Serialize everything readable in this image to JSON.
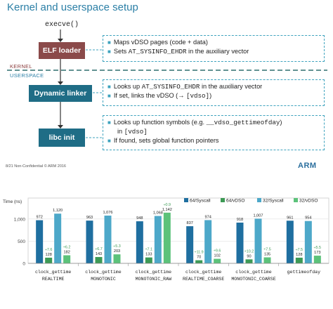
{
  "slide": {
    "title": "Kernel and userspace setup",
    "execve": "execve()",
    "kernel_label": "KERNEL",
    "userspace_label": "USERSPACE",
    "boxes": [
      {
        "label": "ELF loader",
        "color": "#8b4a4a"
      },
      {
        "label": "Dynamic linker",
        "color": "#1f6d86"
      },
      {
        "label": "libc init",
        "color": "#1f6d86"
      }
    ],
    "notes": [
      {
        "line1": "Maps vDSO pages (code + data)",
        "line2_pre": "Sets ",
        "line2_code": "AT_SYSINFO_EHDR",
        "line2_post": " in the auxiliary vector"
      },
      {
        "line1_pre": "Looks up ",
        "line1_code": "AT_SYSINFO_EHDR",
        "line1_post": " in the auxiliary vector",
        "line2_pre": "If set, links the vDSO (→ ",
        "line2_code": "[vdso]",
        "line2_post": ")"
      },
      {
        "line1_pre": "Looks up function symbols (e.g. ",
        "line1_code": "__vdso_gettimeofday",
        "line1_post": ")",
        "line2_pre": "in ",
        "line2_code": "[vdso]",
        "line3": "If found, sets global function pointers"
      }
    ],
    "footer": "8/21    Non-Confidential © ARM 2016",
    "logo": "ARM",
    "colors": {
      "accent": "#2b7fa6",
      "kernel": "#8b4a4a",
      "userspace": "#1f6d86",
      "divider": "#2f6f6f"
    }
  },
  "chart_data": {
    "type": "bar",
    "ylabel": "Time (ns)",
    "ylim": [
      0,
      1250
    ],
    "yticks": [
      "0",
      "500",
      "1,000"
    ],
    "categories": [
      [
        "clock_gettime",
        "REALTIME"
      ],
      [
        "clock_gettime",
        "MONOTONIC"
      ],
      [
        "clock_gettime",
        "MONOTONIC_RAW"
      ],
      [
        "clock_gettime",
        "REALTIME_COARSE"
      ],
      [
        "clock_gettime",
        "MONOTONIC_COARSE"
      ],
      [
        "gettimeofday",
        ""
      ]
    ],
    "series": [
      {
        "name": "64/Syscall",
        "color": "#1f6fa0",
        "values": [
          972,
          963,
          948,
          837,
          918,
          961
        ],
        "labels": [
          "972",
          "963",
          "948",
          "837",
          "918",
          "961"
        ]
      },
      {
        "name": "64/vDSO",
        "color": "#3d9a55",
        "values": [
          128,
          143,
          133,
          70,
          90,
          128
        ],
        "labels": [
          "128",
          "143",
          "133",
          "70",
          "90",
          "128"
        ]
      },
      {
        "name": "32/Syscall",
        "color": "#4da8c9",
        "values": [
          1120,
          1076,
          1068,
          974,
          1007,
          954
        ],
        "labels": [
          "1,120",
          "1,076",
          "1,068",
          "974",
          "1,007",
          "954"
        ]
      },
      {
        "name": "32/vDSO",
        "color": "#5cc27a",
        "values": [
          182,
          203,
          1142,
          102,
          135,
          173
        ],
        "labels": [
          "182",
          "203",
          "1,142",
          "102",
          "135",
          "173"
        ]
      }
    ],
    "speedups": {
      "64/vDSO": [
        "÷7.6",
        "÷6.7",
        "÷7.1",
        "÷11.9",
        "÷10.2",
        "÷7.5"
      ],
      "32/vDSO": [
        "÷6.2",
        "÷5.3",
        "÷0.9",
        "÷9.6",
        "÷7.5",
        "÷5.5"
      ]
    },
    "legend_position": "top-right",
    "grid": true
  }
}
